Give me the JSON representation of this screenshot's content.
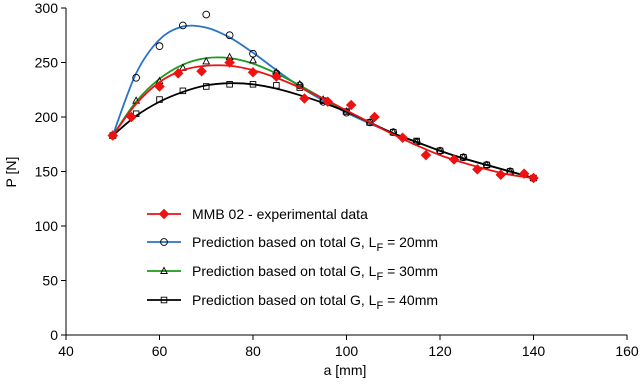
{
  "chart_data": {
    "type": "scatter",
    "xlabel": "a [mm]",
    "ylabel": "P [N]",
    "xlim": [
      40,
      160
    ],
    "ylim": [
      0,
      300
    ],
    "xticks": [
      "40",
      "60",
      "80",
      "100",
      "120",
      "140",
      "160"
    ],
    "yticks": [
      "0",
      "50",
      "100",
      "150",
      "200",
      "250",
      "300"
    ],
    "grid": false,
    "legend_position": "bottom-left",
    "series": [
      {
        "name": "MMB 02 - experimental data",
        "color": "#ee1111",
        "marker": "diamond",
        "points": [
          [
            50,
            183
          ],
          [
            54,
            200
          ],
          [
            60,
            228
          ],
          [
            64,
            240
          ],
          [
            69,
            242
          ],
          [
            75,
            250
          ],
          [
            80,
            241
          ],
          [
            85,
            237
          ],
          [
            91,
            217
          ],
          [
            96,
            214
          ],
          [
            101,
            211
          ],
          [
            106,
            200
          ],
          [
            112,
            181
          ],
          [
            117,
            165
          ],
          [
            123,
            161
          ],
          [
            128,
            152
          ],
          [
            133,
            147
          ],
          [
            138,
            148
          ],
          [
            140,
            144
          ]
        ],
        "curve": [
          [
            50,
            183
          ],
          [
            55,
            212
          ],
          [
            60,
            232
          ],
          [
            65,
            243
          ],
          [
            70,
            247
          ],
          [
            75,
            247
          ],
          [
            80,
            243
          ],
          [
            85,
            236
          ],
          [
            90,
            227
          ],
          [
            95,
            217
          ],
          [
            100,
            206
          ],
          [
            105,
            195
          ],
          [
            110,
            184
          ],
          [
            115,
            174
          ],
          [
            120,
            165
          ],
          [
            125,
            158
          ],
          [
            130,
            152
          ],
          [
            135,
            147
          ],
          [
            140,
            144
          ]
        ]
      },
      {
        "name_prefix": "Prediction based on total G, L",
        "name_sub": "F",
        "name_suffix": " = 20mm",
        "color": "#2a73c8",
        "marker": "circle",
        "points": [
          [
            50,
            183
          ],
          [
            55,
            236
          ],
          [
            60,
            265
          ],
          [
            65,
            284
          ],
          [
            70,
            294
          ],
          [
            75,
            275
          ],
          [
            80,
            258
          ],
          [
            85,
            240
          ],
          [
            90,
            229
          ],
          [
            95,
            214
          ],
          [
            100,
            204
          ],
          [
            105,
            195
          ],
          [
            110,
            186
          ],
          [
            115,
            177
          ],
          [
            120,
            169
          ],
          [
            125,
            163
          ],
          [
            130,
            156
          ],
          [
            135,
            150
          ],
          [
            140,
            144
          ]
        ],
        "curve": [
          [
            50,
            183
          ],
          [
            55,
            240
          ],
          [
            60,
            271
          ],
          [
            65,
            283
          ],
          [
            70,
            282
          ],
          [
            75,
            273
          ],
          [
            80,
            259
          ],
          [
            85,
            243
          ],
          [
            90,
            228
          ],
          [
            95,
            215
          ],
          [
            100,
            204
          ],
          [
            105,
            194
          ],
          [
            110,
            185
          ],
          [
            115,
            177
          ],
          [
            120,
            169
          ],
          [
            125,
            162
          ],
          [
            130,
            156
          ],
          [
            135,
            150
          ],
          [
            140,
            144
          ]
        ]
      },
      {
        "name_prefix": "Prediction based on total G, L",
        "name_sub": "F",
        "name_suffix": " = 30mm",
        "color": "#1a9a1a",
        "marker": "triangle",
        "points": [
          [
            50,
            183
          ],
          [
            55,
            215
          ],
          [
            60,
            233
          ],
          [
            65,
            245
          ],
          [
            70,
            251
          ],
          [
            75,
            255
          ],
          [
            80,
            252
          ],
          [
            85,
            241
          ],
          [
            90,
            230
          ],
          [
            95,
            216
          ],
          [
            100,
            205
          ],
          [
            105,
            195
          ],
          [
            110,
            186
          ],
          [
            115,
            177
          ],
          [
            120,
            169
          ],
          [
            125,
            163
          ],
          [
            130,
            156
          ],
          [
            135,
            150
          ],
          [
            140,
            144
          ]
        ],
        "curve": [
          [
            50,
            183
          ],
          [
            55,
            214
          ],
          [
            60,
            235
          ],
          [
            65,
            248
          ],
          [
            70,
            254
          ],
          [
            75,
            254
          ],
          [
            80,
            249
          ],
          [
            85,
            240
          ],
          [
            90,
            229
          ],
          [
            95,
            217
          ],
          [
            100,
            205
          ],
          [
            105,
            195
          ],
          [
            110,
            185
          ],
          [
            115,
            177
          ],
          [
            120,
            169
          ],
          [
            125,
            162
          ],
          [
            130,
            156
          ],
          [
            135,
            150
          ],
          [
            140,
            144
          ]
        ]
      },
      {
        "name_prefix": "Prediction based on total G, L",
        "name_sub": "F",
        "name_suffix": " = 40mm",
        "color": "#000000",
        "marker": "square",
        "points": [
          [
            50,
            183
          ],
          [
            55,
            203
          ],
          [
            60,
            216
          ],
          [
            65,
            224
          ],
          [
            70,
            228
          ],
          [
            75,
            230
          ],
          [
            80,
            230
          ],
          [
            85,
            229
          ],
          [
            90,
            227
          ],
          [
            95,
            215
          ],
          [
            100,
            205
          ],
          [
            105,
            195
          ],
          [
            110,
            186
          ],
          [
            115,
            178
          ],
          [
            120,
            169
          ],
          [
            125,
            163
          ],
          [
            130,
            156
          ],
          [
            135,
            150
          ],
          [
            140,
            144
          ]
        ],
        "curve": [
          [
            50,
            183
          ],
          [
            55,
            201
          ],
          [
            60,
            214
          ],
          [
            65,
            223
          ],
          [
            70,
            229
          ],
          [
            75,
            231
          ],
          [
            80,
            230
          ],
          [
            85,
            226
          ],
          [
            90,
            220
          ],
          [
            95,
            213
          ],
          [
            100,
            205
          ],
          [
            105,
            195
          ],
          [
            110,
            185
          ],
          [
            115,
            177
          ],
          [
            120,
            169
          ],
          [
            125,
            162
          ],
          [
            130,
            156
          ],
          [
            135,
            150
          ],
          [
            140,
            144
          ]
        ]
      }
    ]
  }
}
